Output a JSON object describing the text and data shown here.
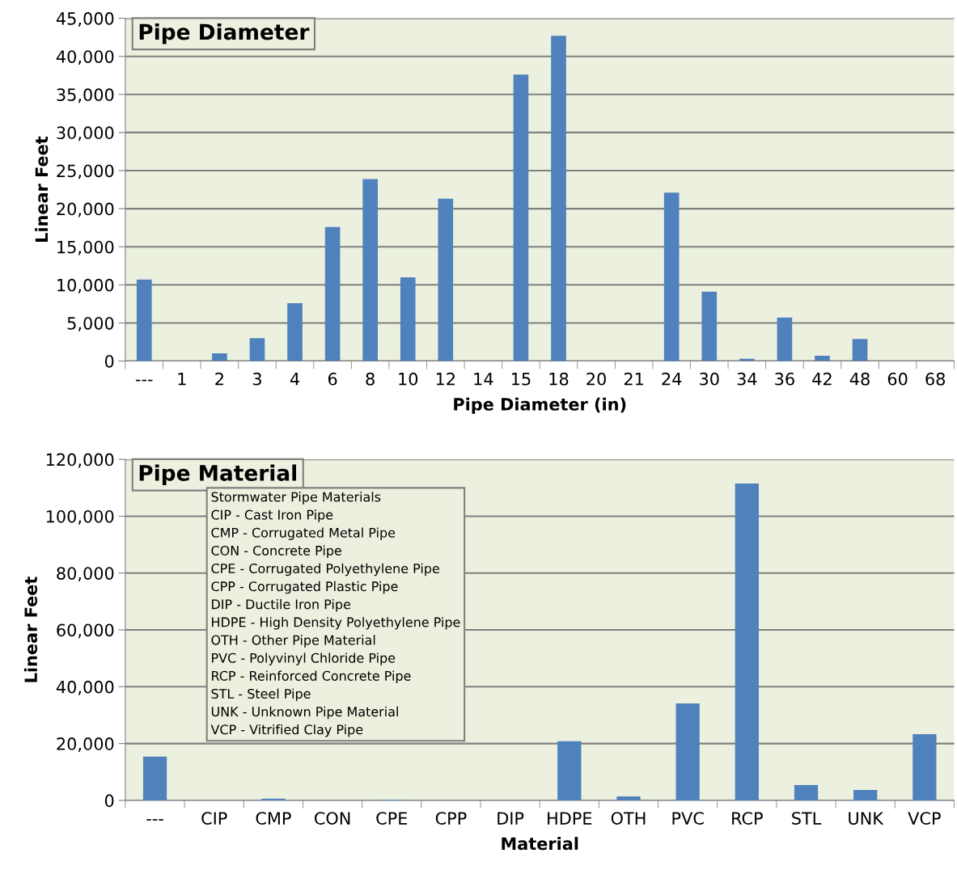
{
  "chart_data": [
    {
      "type": "bar",
      "title": "Pipe Diameter",
      "xlabel": "Pipe Diameter (in)",
      "ylabel": "Linear Feet",
      "categories": [
        "---",
        "1",
        "2",
        "3",
        "4",
        "6",
        "8",
        "10",
        "12",
        "14",
        "15",
        "18",
        "20",
        "21",
        "24",
        "30",
        "34",
        "36",
        "42",
        "48",
        "60",
        "68"
      ],
      "values": [
        10700,
        0,
        1000,
        3000,
        7600,
        17600,
        23900,
        11000,
        21300,
        0,
        37600,
        42700,
        0,
        0,
        22100,
        9100,
        300,
        5700,
        700,
        2900,
        0,
        0
      ],
      "color": "#4f81bd",
      "ylim": [
        0,
        45000
      ],
      "yticks": [
        {
          "value": 0,
          "label": "0"
        },
        {
          "value": 5000,
          "label": "5,000"
        },
        {
          "value": 10000,
          "label": "10,000"
        },
        {
          "value": 15000,
          "label": "15,000"
        },
        {
          "value": 20000,
          "label": "20,000"
        },
        {
          "value": 25000,
          "label": "25,000"
        },
        {
          "value": 30000,
          "label": "30,000"
        },
        {
          "value": 35000,
          "label": "35,000"
        },
        {
          "value": 40000,
          "label": "40,000"
        },
        {
          "value": 45000,
          "label": "45,000"
        }
      ],
      "grid": "y",
      "legend": false
    },
    {
      "type": "bar",
      "title": "Pipe Material",
      "xlabel": "Material",
      "ylabel": "Linear Feet",
      "categories": [
        "---",
        "CIP",
        "CMP",
        "CON",
        "CPE",
        "CPP",
        "DIP",
        "HDPE",
        "OTH",
        "PVC",
        "RCP",
        "STL",
        "UNK",
        "VCP"
      ],
      "values": [
        15400,
        0,
        600,
        0,
        200,
        0,
        0,
        20800,
        1400,
        34100,
        111500,
        5400,
        3700,
        23300
      ],
      "color": "#4f81bd",
      "ylim": [
        0,
        120000
      ],
      "yticks": [
        {
          "value": 0,
          "label": "0"
        },
        {
          "value": 20000,
          "label": "20,000"
        },
        {
          "value": 40000,
          "label": "40,000"
        },
        {
          "value": 60000,
          "label": "60,000"
        },
        {
          "value": 80000,
          "label": "80,000"
        },
        {
          "value": 100000,
          "label": "100,000"
        },
        {
          "value": 120000,
          "label": "120,000"
        }
      ],
      "grid": "y",
      "legend": false,
      "annotations": [
        "Stormwater Pipe Materials",
        "CIP - Cast Iron Pipe",
        "CMP - Corrugated Metal Pipe",
        "CON - Concrete Pipe",
        "CPE - Corrugated Polyethylene Pipe",
        "CPP - Corrugated Plastic Pipe",
        "DIP - Ductile Iron Pipe",
        "HDPE - High Density Polyethylene Pipe",
        "OTH - Other Pipe Material",
        "PVC - Polyvinyl Chloride Pipe",
        "RCP - Reinforced Concrete Pipe",
        "STL - Steel Pipe",
        "UNK - Unknown Pipe Material",
        "VCP - Vitrified Clay Pipe"
      ]
    }
  ]
}
